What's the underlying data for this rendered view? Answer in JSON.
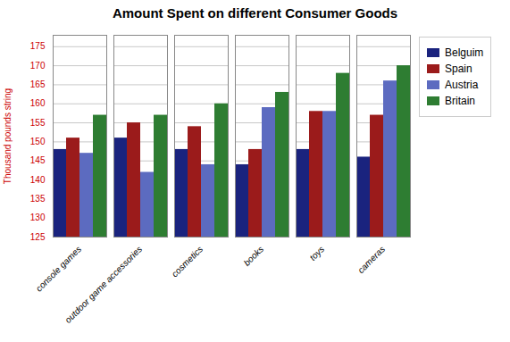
{
  "chart_data": {
    "type": "bar",
    "title": "Amount Spent on different Consumer Goods",
    "ylabel": "Thousand pounds string",
    "categories": [
      "console games",
      "outdoor game accessories",
      "cosmetics",
      "books",
      "toys",
      "cameras"
    ],
    "series": [
      {
        "name": "Belguim",
        "color": "#1a237e",
        "values": [
          148,
          151,
          148,
          144,
          148,
          146
        ]
      },
      {
        "name": "Spain",
        "color": "#9b1b1b",
        "values": [
          151,
          155,
          154,
          148,
          158,
          157
        ]
      },
      {
        "name": "Austria",
        "color": "#5c6bc0",
        "values": [
          147,
          142,
          144,
          159,
          158,
          166
        ]
      },
      {
        "name": "Britain",
        "color": "#2e7d32",
        "values": [
          157,
          157,
          160,
          163,
          168,
          170
        ]
      }
    ],
    "ylim": [
      125,
      178
    ],
    "yticks": [
      125,
      130,
      135,
      140,
      145,
      150,
      155,
      160,
      165,
      170,
      175
    ],
    "grid": true,
    "legend": "right"
  }
}
